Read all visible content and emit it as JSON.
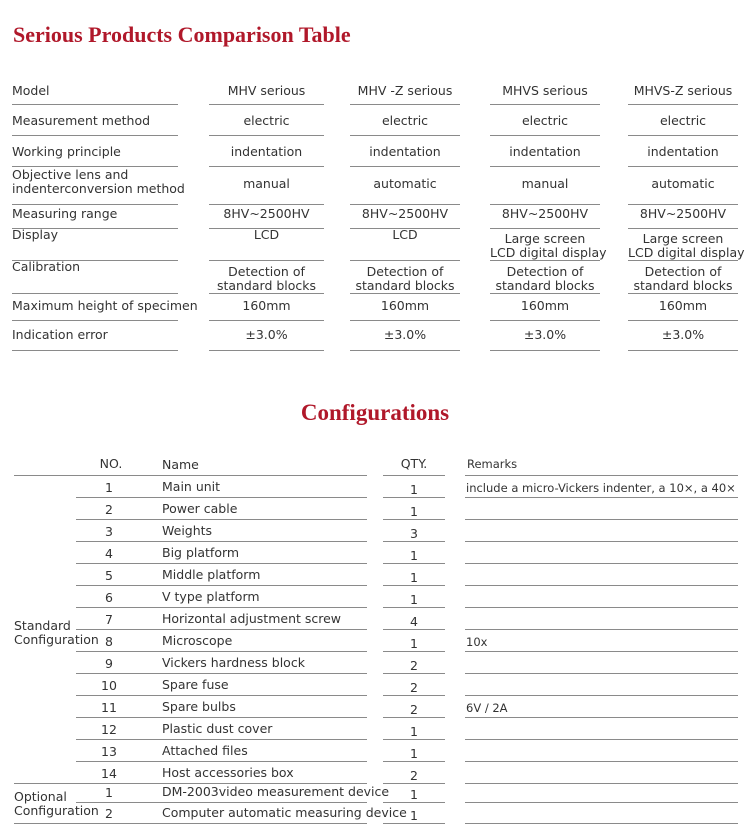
{
  "comparison": {
    "title": "Serious Products Comparison Table",
    "rows": [
      {
        "label": "Model",
        "values": [
          "MHV serious",
          "MHV -Z serious",
          "MHVS serious",
          "MHVS-Z serious"
        ]
      },
      {
        "label": "Measurement method",
        "values": [
          "electric",
          "electric",
          "electric",
          "electric"
        ]
      },
      {
        "label": "Working principle",
        "values": [
          "indentation",
          "indentation",
          "indentation",
          "indentation"
        ]
      },
      {
        "label": "Objective lens and\nindenterconversion method",
        "values": [
          "manual",
          "automatic",
          "manual",
          "automatic"
        ]
      },
      {
        "label": "Measuring range",
        "values": [
          "8HV~2500HV",
          "8HV~2500HV",
          "8HV~2500HV",
          "8HV~2500HV"
        ]
      },
      {
        "label": "Display",
        "values": [
          "LCD",
          "LCD",
          "Large screen\nLCD digital display",
          "Large screen\nLCD digital display"
        ]
      },
      {
        "label": "Calibration",
        "values": [
          "Detection of\nstandard blocks",
          "Detection of\nstandard blocks",
          "Detection of\nstandard blocks",
          "Detection of\nstandard blocks"
        ]
      },
      {
        "label": "Maximum height of specimen",
        "values": [
          "160mm",
          "160mm",
          "160mm",
          "160mm"
        ]
      },
      {
        "label": "Indication error",
        "values": [
          "±3.0%",
          "±3.0%",
          "±3.0%",
          "±3.0%"
        ]
      }
    ]
  },
  "configurations": {
    "title": "Configurations",
    "headers": {
      "no": "NO.",
      "name": "Name",
      "qty": "QTY.",
      "remarks": "Remarks"
    },
    "standard_label": "Standard\nConfiguration",
    "optional_label": "Optional\nConfiguration",
    "standard": [
      {
        "no": "1",
        "name": "Main unit",
        "qty": "1",
        "remarks": "include a micro-Vickers indenter, a 10×, a 40×"
      },
      {
        "no": "2",
        "name": "Power cable",
        "qty": "1",
        "remarks": ""
      },
      {
        "no": "3",
        "name": "Weights",
        "qty": "3",
        "remarks": ""
      },
      {
        "no": "4",
        "name": "Big platform",
        "qty": "1",
        "remarks": ""
      },
      {
        "no": "5",
        "name": "Middle platform",
        "qty": "1",
        "remarks": ""
      },
      {
        "no": "6",
        "name": "V type platform",
        "qty": "1",
        "remarks": ""
      },
      {
        "no": "7",
        "name": "Horizontal adjustment screw",
        "qty": "4",
        "remarks": ""
      },
      {
        "no": "8",
        "name": "Microscope",
        "qty": "1",
        "remarks": "10x"
      },
      {
        "no": "9",
        "name": "Vickers hardness block",
        "qty": "2",
        "remarks": ""
      },
      {
        "no": "10",
        "name": "Spare fuse",
        "qty": "2",
        "remarks": ""
      },
      {
        "no": "11",
        "name": "Spare bulbs",
        "qty": "2",
        "remarks": "6V / 2A"
      },
      {
        "no": "12",
        "name": "Plastic dust cover",
        "qty": "1",
        "remarks": ""
      },
      {
        "no": "13",
        "name": "Attached files",
        "qty": "1",
        "remarks": ""
      },
      {
        "no": "14",
        "name": "Host accessories box",
        "qty": "2",
        "remarks": ""
      }
    ],
    "optional": [
      {
        "no": "1",
        "name": "DM-2003video measurement device",
        "qty": "1",
        "remarks": ""
      },
      {
        "no": "2",
        "name": "Computer automatic measuring device",
        "qty": "1",
        "remarks": ""
      }
    ]
  },
  "colors": {
    "title": "#b0182a",
    "text": "#333333",
    "rule": "#8a8a8a"
  }
}
